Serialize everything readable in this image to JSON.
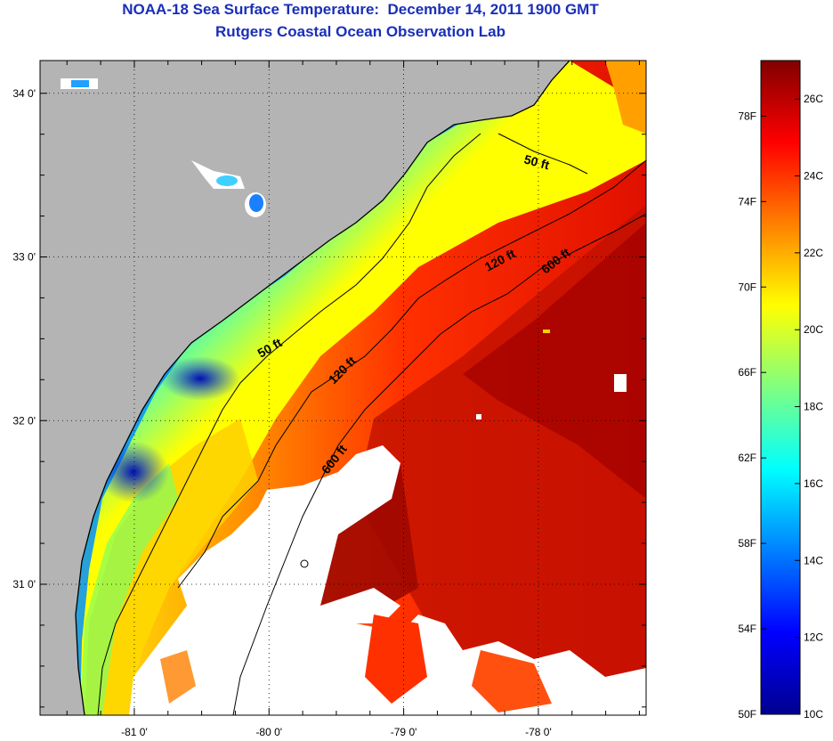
{
  "title": "NOAA-18 Sea Surface Temperature:  December 14, 2011 1900 GMT",
  "subtitle": "Rutgers Coastal Ocean Observation Lab",
  "map": {
    "lon_range": [
      -81.7,
      -77.2
    ],
    "lat_range": [
      30.2,
      34.2
    ],
    "lon_ticks": [
      {
        "value": -81,
        "label": "-81 0'"
      },
      {
        "value": -80,
        "label": "-80 0'"
      },
      {
        "value": -79,
        "label": "-79 0'"
      },
      {
        "value": -78,
        "label": "-78 0'"
      }
    ],
    "lat_ticks": [
      {
        "value": 34,
        "label": "34 0'"
      },
      {
        "value": 33,
        "label": "33 0'"
      },
      {
        "value": 32,
        "label": "32 0'"
      },
      {
        "value": 31,
        "label": "31 0'"
      }
    ],
    "grid": "dotted",
    "contours": [
      {
        "depth": "50 ft",
        "labels": [
          "50 ft",
          "50 ft"
        ]
      },
      {
        "depth": "120 ft",
        "labels": [
          "120 ft",
          "120 ft"
        ]
      },
      {
        "depth": "600 ft",
        "labels": [
          "600 ft",
          "600 ft"
        ]
      }
    ],
    "colors": {
      "land": "#b4b4b4",
      "cloud": "#ffffff",
      "contour": "#000000"
    }
  },
  "colorbar": {
    "range_c": [
      10,
      27
    ],
    "celsius_labels": [
      {
        "value": 26,
        "label": "26C"
      },
      {
        "value": 24,
        "label": "24C"
      },
      {
        "value": 22,
        "label": "22C"
      },
      {
        "value": 20,
        "label": "20C"
      },
      {
        "value": 18,
        "label": "18C"
      },
      {
        "value": 16,
        "label": "16C"
      },
      {
        "value": 14,
        "label": "14C"
      },
      {
        "value": 12,
        "label": "12C"
      },
      {
        "value": 10,
        "label": "10C"
      }
    ],
    "fahrenheit_labels": [
      {
        "value": 78,
        "label": "78F"
      },
      {
        "value": 74,
        "label": "74F"
      },
      {
        "value": 70,
        "label": "70F"
      },
      {
        "value": 66,
        "label": "66F"
      },
      {
        "value": 62,
        "label": "62F"
      },
      {
        "value": 58,
        "label": "58F"
      },
      {
        "value": 54,
        "label": "54F"
      },
      {
        "value": 50,
        "label": "50F"
      }
    ],
    "stops": [
      "#00008f",
      "#0000ff",
      "#0080ff",
      "#00ffff",
      "#80ff80",
      "#ffff00",
      "#ff8000",
      "#ff0000",
      "#800000"
    ]
  }
}
